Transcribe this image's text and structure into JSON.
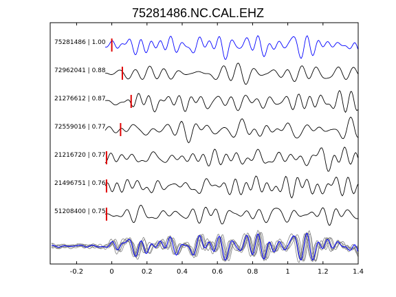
{
  "chart_data": {
    "type": "line",
    "title": "75281486.NC.CAL.EHZ",
    "xlabel": "",
    "ylabel": "",
    "xlim": [
      -0.35,
      1.4
    ],
    "xticks": [
      -0.2,
      0,
      0.2,
      0.4,
      0.6,
      0.8,
      1,
      1.2,
      1.4
    ],
    "xtick_labels": [
      "-0.2",
      "0",
      "0.2",
      "0.4",
      "0.6",
      "0.8",
      "1",
      "1.2",
      "1.4"
    ],
    "grid": false,
    "legend": "none",
    "colors": {
      "reference": "#0000ff",
      "trace": "#000000",
      "pick": "#e00000",
      "stack": "#808080"
    },
    "traces": [
      {
        "label": "75281486 | 1.00",
        "pick_time": 0.0,
        "reference": true,
        "seed": 1
      },
      {
        "label": "72962041 | 0.88",
        "pick_time": 0.06,
        "reference": false,
        "seed": 2
      },
      {
        "label": "21276612 | 0.87",
        "pick_time": 0.11,
        "reference": false,
        "seed": 3
      },
      {
        "label": "72559016 | 0.77",
        "pick_time": 0.05,
        "reference": false,
        "seed": 4
      },
      {
        "label": "21216720 | 0.77",
        "pick_time": -0.03,
        "reference": false,
        "seed": 5
      },
      {
        "label": "21496751 | 0.76",
        "pick_time": -0.03,
        "reference": false,
        "seed": 6
      },
      {
        "label": "51208400 | 0.75",
        "pick_time": -0.03,
        "reference": false,
        "seed": 7
      }
    ],
    "stack": {
      "overlay_count": 6
    }
  }
}
